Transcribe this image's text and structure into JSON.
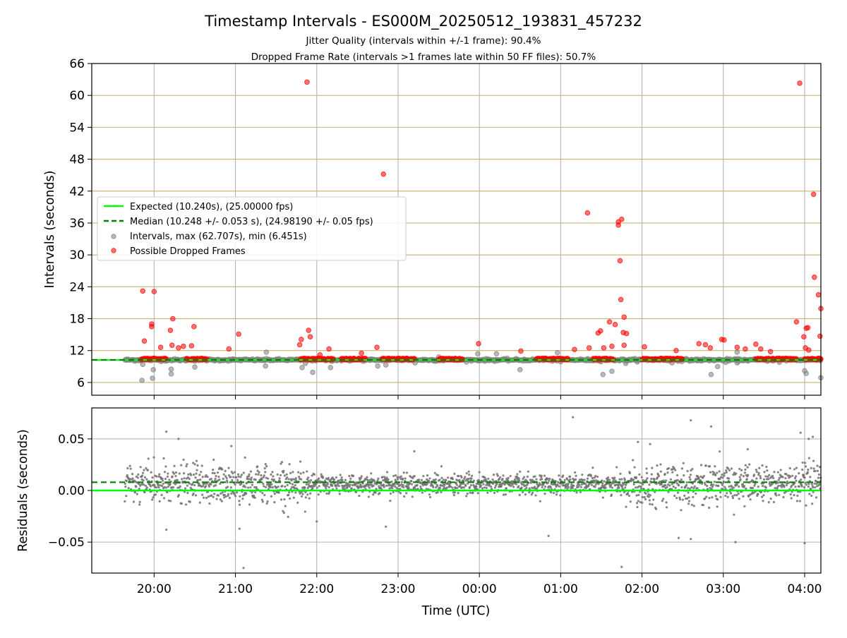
{
  "title": "Timestamp Intervals - ES000M_20250512_193831_457232",
  "subtitle_jitter": "Jitter Quality (intervals within +/-1 frame): 90.4%",
  "subtitle_dropped": "Dropped Frame Rate (intervals >1 frames late within 50 FF files): 50.7%",
  "colors": {
    "expected": "#00ff00",
    "median": "#008000",
    "intervals": "#808080",
    "dropped": "#ff0000",
    "hgrid": "#c8b46e",
    "vgrid": "#b0b0b0"
  },
  "chart_data": [
    {
      "type": "scatter",
      "xlabel": "",
      "ylabel": "Intervals (seconds)",
      "x_unit": "hours since 19:00 UTC",
      "xlim": [
        0.233,
        9.2
      ],
      "ylim": [
        3.6,
        66
      ],
      "yticks": [
        6,
        12,
        18,
        24,
        30,
        36,
        42,
        48,
        54,
        60,
        66
      ],
      "xticks": [
        1,
        2,
        3,
        4,
        5,
        6,
        7,
        8,
        9
      ],
      "xtick_labels": [
        "20:00",
        "21:00",
        "22:00",
        "23:00",
        "00:00",
        "01:00",
        "02:00",
        "03:00",
        "04:00"
      ],
      "grid": "horizontal-tan-and-vertical-gray",
      "legend_position": "center-left",
      "legend": [
        "Expected (10.240s), (25.00000 fps)",
        "Median (10.248 +/- 0.053 s), (24.98190 +/- 0.05 fps)",
        "Intervals, max (62.707s), min (6.451s)",
        "Possible Dropped Frames"
      ],
      "expected_value": 10.24,
      "median_value": 10.248,
      "data_start_hour": 0.64,
      "data_end_hour": 9.2,
      "dropped_clusters": [
        [
          0.84,
          1.15
        ],
        [
          1.4,
          1.65
        ],
        [
          2.8,
          3.2
        ],
        [
          3.3,
          3.6
        ],
        [
          3.8,
          4.2
        ],
        [
          4.5,
          4.8
        ],
        [
          5.7,
          6.1
        ],
        [
          6.4,
          6.65
        ],
        [
          7.0,
          7.5
        ],
        [
          8.4,
          8.9
        ],
        [
          9.0,
          9.2
        ]
      ],
      "dropped_points": [
        {
          "x": 0.86,
          "y": 23.2
        },
        {
          "x": 1.0,
          "y": 23.1
        },
        {
          "x": 0.97,
          "y": 16.5
        },
        {
          "x": 0.97,
          "y": 17.0
        },
        {
          "x": 0.88,
          "y": 13.8
        },
        {
          "x": 1.08,
          "y": 12.6
        },
        {
          "x": 1.2,
          "y": 15.8
        },
        {
          "x": 1.23,
          "y": 18.0
        },
        {
          "x": 1.22,
          "y": 13.0
        },
        {
          "x": 1.3,
          "y": 12.5
        },
        {
          "x": 1.36,
          "y": 12.8
        },
        {
          "x": 1.46,
          "y": 12.9
        },
        {
          "x": 1.49,
          "y": 16.5
        },
        {
          "x": 1.92,
          "y": 12.3
        },
        {
          "x": 2.04,
          "y": 15.1
        },
        {
          "x": 2.79,
          "y": 13.1
        },
        {
          "x": 2.81,
          "y": 14.1
        },
        {
          "x": 2.9,
          "y": 15.8
        },
        {
          "x": 2.92,
          "y": 14.6
        },
        {
          "x": 2.88,
          "y": 62.5
        },
        {
          "x": 3.04,
          "y": 11.2
        },
        {
          "x": 3.15,
          "y": 12.3
        },
        {
          "x": 3.55,
          "y": 11.5
        },
        {
          "x": 3.74,
          "y": 12.6
        },
        {
          "x": 3.82,
          "y": 45.2
        },
        {
          "x": 4.99,
          "y": 13.3
        },
        {
          "x": 5.51,
          "y": 11.9
        },
        {
          "x": 6.17,
          "y": 12.2
        },
        {
          "x": 6.33,
          "y": 37.9
        },
        {
          "x": 6.35,
          "y": 12.5
        },
        {
          "x": 6.46,
          "y": 15.3
        },
        {
          "x": 6.49,
          "y": 15.7
        },
        {
          "x": 6.53,
          "y": 12.5
        },
        {
          "x": 6.6,
          "y": 17.4
        },
        {
          "x": 6.63,
          "y": 12.8
        },
        {
          "x": 6.67,
          "y": 16.9
        },
        {
          "x": 6.71,
          "y": 35.6
        },
        {
          "x": 6.71,
          "y": 36.2
        },
        {
          "x": 6.75,
          "y": 36.7
        },
        {
          "x": 6.73,
          "y": 28.9
        },
        {
          "x": 6.74,
          "y": 21.6
        },
        {
          "x": 6.78,
          "y": 18.3
        },
        {
          "x": 6.77,
          "y": 15.4
        },
        {
          "x": 6.81,
          "y": 15.2
        },
        {
          "x": 6.78,
          "y": 13.0
        },
        {
          "x": 7.03,
          "y": 12.7
        },
        {
          "x": 7.42,
          "y": 12.0
        },
        {
          "x": 7.7,
          "y": 13.3
        },
        {
          "x": 7.78,
          "y": 13.1
        },
        {
          "x": 7.84,
          "y": 12.5
        },
        {
          "x": 7.98,
          "y": 14.1
        },
        {
          "x": 8.01,
          "y": 14.0
        },
        {
          "x": 8.17,
          "y": 12.6
        },
        {
          "x": 8.27,
          "y": 12.3
        },
        {
          "x": 8.4,
          "y": 13.2
        },
        {
          "x": 8.46,
          "y": 12.3
        },
        {
          "x": 8.58,
          "y": 11.8
        },
        {
          "x": 8.9,
          "y": 17.4
        },
        {
          "x": 8.99,
          "y": 14.6
        },
        {
          "x": 9.02,
          "y": 16.2
        },
        {
          "x": 9.04,
          "y": 16.3
        },
        {
          "x": 9.01,
          "y": 12.5
        },
        {
          "x": 8.94,
          "y": 62.3
        },
        {
          "x": 9.05,
          "y": 12.1
        },
        {
          "x": 9.11,
          "y": 41.4
        },
        {
          "x": 9.12,
          "y": 25.8
        },
        {
          "x": 9.17,
          "y": 22.5
        },
        {
          "x": 9.2,
          "y": 19.9
        },
        {
          "x": 9.19,
          "y": 14.7
        }
      ],
      "interval_points": [
        {
          "x": 0.85,
          "y": 6.4
        },
        {
          "x": 0.86,
          "y": 9.4
        },
        {
          "x": 0.98,
          "y": 6.8
        },
        {
          "x": 0.99,
          "y": 8.4
        },
        {
          "x": 1.21,
          "y": 7.6
        },
        {
          "x": 1.21,
          "y": 8.5
        },
        {
          "x": 1.5,
          "y": 8.9
        },
        {
          "x": 2.37,
          "y": 9.1
        },
        {
          "x": 2.38,
          "y": 11.7
        },
        {
          "x": 2.82,
          "y": 8.8
        },
        {
          "x": 2.86,
          "y": 9.6
        },
        {
          "x": 2.95,
          "y": 7.9
        },
        {
          "x": 3.17,
          "y": 8.8
        },
        {
          "x": 3.75,
          "y": 9.1
        },
        {
          "x": 3.85,
          "y": 9.3
        },
        {
          "x": 4.21,
          "y": 9.7
        },
        {
          "x": 4.5,
          "y": 10.8
        },
        {
          "x": 4.98,
          "y": 11.4
        },
        {
          "x": 5.21,
          "y": 11.4
        },
        {
          "x": 5.5,
          "y": 8.4
        },
        {
          "x": 5.96,
          "y": 11.6
        },
        {
          "x": 6.0,
          "y": 9.9
        },
        {
          "x": 6.52,
          "y": 7.5
        },
        {
          "x": 6.63,
          "y": 8.1
        },
        {
          "x": 6.8,
          "y": 9.6
        },
        {
          "x": 7.37,
          "y": 9.7
        },
        {
          "x": 7.68,
          "y": 10.1
        },
        {
          "x": 7.85,
          "y": 7.5
        },
        {
          "x": 7.93,
          "y": 9.0
        },
        {
          "x": 8.03,
          "y": 9.8
        },
        {
          "x": 8.17,
          "y": 9.7
        },
        {
          "x": 8.17,
          "y": 11.7
        },
        {
          "x": 8.69,
          "y": 9.8
        },
        {
          "x": 9.0,
          "y": 8.2
        },
        {
          "x": 9.02,
          "y": 7.7
        },
        {
          "x": 9.2,
          "y": 6.9
        }
      ]
    },
    {
      "type": "scatter",
      "xlabel": "Time (UTC)",
      "ylabel": "Residuals (seconds)",
      "x_unit": "hours since 19:00 UTC",
      "xlim": [
        0.233,
        9.2
      ],
      "ylim": [
        -0.08,
        0.08
      ],
      "yticks": [
        -0.05,
        0.0,
        0.05
      ],
      "ytick_labels": [
        "−0.05",
        "0.00",
        "0.05"
      ],
      "xticks": [
        1,
        2,
        3,
        4,
        5,
        6,
        7,
        8,
        9
      ],
      "xtick_labels": [
        "20:00",
        "21:00",
        "22:00",
        "23:00",
        "00:00",
        "01:00",
        "02:00",
        "03:00",
        "04:00"
      ],
      "grid": "both-gray",
      "expected_residual": 0.0,
      "median_residual": 0.008,
      "residual_center": 0.006,
      "residual_spread_segments": [
        {
          "from": 0.64,
          "to": 2.9,
          "spread": 0.017
        },
        {
          "from": 2.9,
          "to": 6.8,
          "spread": 0.009
        },
        {
          "from": 6.8,
          "to": 9.2,
          "spread": 0.017
        }
      ],
      "outlier_points": [
        {
          "x": 1.15,
          "y": 0.057
        },
        {
          "x": 1.3,
          "y": 0.05
        },
        {
          "x": 1.15,
          "y": -0.038
        },
        {
          "x": 1.95,
          "y": 0.043
        },
        {
          "x": 2.1,
          "y": -0.075
        },
        {
          "x": 2.05,
          "y": -0.037
        },
        {
          "x": 3.0,
          "y": -0.03
        },
        {
          "x": 3.85,
          "y": -0.035
        },
        {
          "x": 6.15,
          "y": 0.071
        },
        {
          "x": 5.85,
          "y": -0.044
        },
        {
          "x": 6.75,
          "y": -0.074
        },
        {
          "x": 6.95,
          "y": 0.047
        },
        {
          "x": 7.45,
          "y": -0.046
        },
        {
          "x": 7.6,
          "y": -0.047
        },
        {
          "x": 7.6,
          "y": 0.068
        },
        {
          "x": 7.85,
          "y": 0.062
        },
        {
          "x": 8.15,
          "y": -0.05
        },
        {
          "x": 8.95,
          "y": 0.056
        },
        {
          "x": 9.05,
          "y": 0.05
        },
        {
          "x": 9.1,
          "y": 0.052
        },
        {
          "x": 9.0,
          "y": -0.051
        },
        {
          "x": 8.3,
          "y": 0.04
        },
        {
          "x": 4.2,
          "y": 0.038
        },
        {
          "x": 7.1,
          "y": 0.045
        }
      ]
    }
  ]
}
